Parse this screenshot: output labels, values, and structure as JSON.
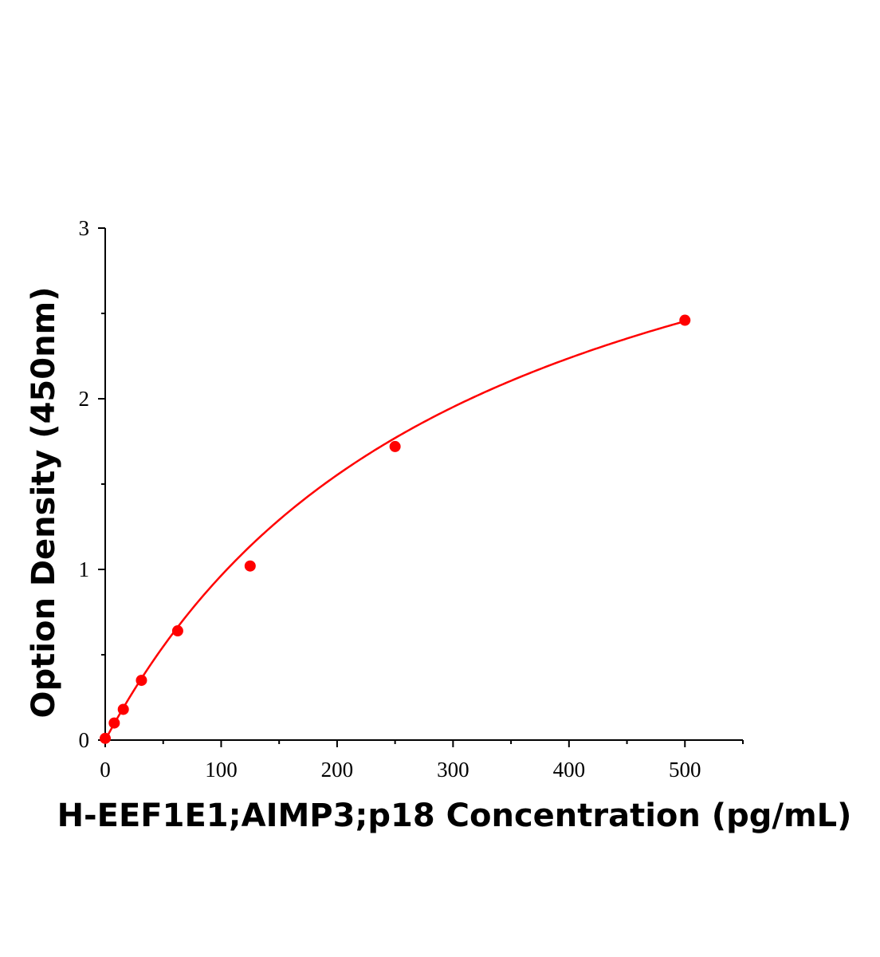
{
  "chart_data": {
    "type": "scatter",
    "title": "",
    "xlabel": "H-EEF1E1;AIMP3;p18 Concentration (pg/mL)",
    "ylabel": "Option Density (450nm)",
    "xlim": [
      0,
      550
    ],
    "ylim": [
      0,
      3
    ],
    "x_ticks": [
      0,
      100,
      200,
      300,
      400,
      500
    ],
    "y_ticks": [
      0,
      1,
      2,
      3
    ],
    "grid": false,
    "legend": "none",
    "marker_color": "#ff0000",
    "line_color": "#ff0000",
    "points": {
      "x": [
        0,
        7.8,
        15.6,
        31.25,
        62.5,
        125,
        250,
        500
      ],
      "y": [
        0.01,
        0.1,
        0.18,
        0.35,
        0.64,
        1.02,
        1.72,
        2.46
      ]
    },
    "fit": {
      "model": "saturation",
      "ymax": 4.0,
      "k": 315
    }
  }
}
